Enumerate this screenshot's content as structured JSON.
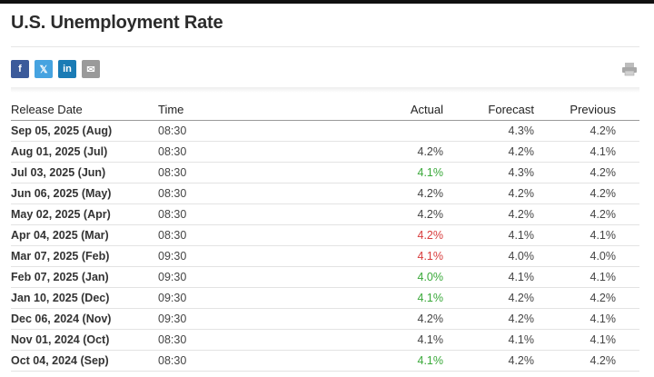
{
  "page": {
    "title": "U.S. Unemployment Rate"
  },
  "share": [
    {
      "id": "facebook",
      "glyph": "f",
      "color": "#3b5a9a"
    },
    {
      "id": "twitter",
      "glyph": "𝕏",
      "color": "#46a3e0"
    },
    {
      "id": "linkedin",
      "glyph": "in",
      "color": "#1a7bb5"
    },
    {
      "id": "email",
      "glyph": "✉",
      "color": "#9a9a9a"
    }
  ],
  "colors": {
    "better": "#3aa93a",
    "worse": "#d83c3c"
  },
  "table": {
    "headers": {
      "date": "Release Date",
      "time": "Time",
      "actual": "Actual",
      "forecast": "Forecast",
      "previous": "Previous"
    },
    "rows": [
      {
        "date": "Sep 05, 2025 (Aug)",
        "time": "08:30",
        "actual": "",
        "actual_status": "",
        "forecast": "4.3%",
        "previous": "4.2%"
      },
      {
        "date": "Aug 01, 2025 (Jul)",
        "time": "08:30",
        "actual": "4.2%",
        "actual_status": "",
        "forecast": "4.2%",
        "previous": "4.1%"
      },
      {
        "date": "Jul 03, 2025 (Jun)",
        "time": "08:30",
        "actual": "4.1%",
        "actual_status": "better",
        "forecast": "4.3%",
        "previous": "4.2%"
      },
      {
        "date": "Jun 06, 2025 (May)",
        "time": "08:30",
        "actual": "4.2%",
        "actual_status": "",
        "forecast": "4.2%",
        "previous": "4.2%"
      },
      {
        "date": "May 02, 2025 (Apr)",
        "time": "08:30",
        "actual": "4.2%",
        "actual_status": "",
        "forecast": "4.2%",
        "previous": "4.2%"
      },
      {
        "date": "Apr 04, 2025 (Mar)",
        "time": "08:30",
        "actual": "4.2%",
        "actual_status": "worse",
        "forecast": "4.1%",
        "previous": "4.1%"
      },
      {
        "date": "Mar 07, 2025 (Feb)",
        "time": "09:30",
        "actual": "4.1%",
        "actual_status": "worse",
        "forecast": "4.0%",
        "previous": "4.0%"
      },
      {
        "date": "Feb 07, 2025 (Jan)",
        "time": "09:30",
        "actual": "4.0%",
        "actual_status": "better",
        "forecast": "4.1%",
        "previous": "4.1%"
      },
      {
        "date": "Jan 10, 2025 (Dec)",
        "time": "09:30",
        "actual": "4.1%",
        "actual_status": "better",
        "forecast": "4.2%",
        "previous": "4.2%"
      },
      {
        "date": "Dec 06, 2024 (Nov)",
        "time": "09:30",
        "actual": "4.2%",
        "actual_status": "",
        "forecast": "4.2%",
        "previous": "4.1%"
      },
      {
        "date": "Nov 01, 2024 (Oct)",
        "time": "08:30",
        "actual": "4.1%",
        "actual_status": "",
        "forecast": "4.1%",
        "previous": "4.1%"
      },
      {
        "date": "Oct 04, 2024 (Sep)",
        "time": "08:30",
        "actual": "4.1%",
        "actual_status": "better",
        "forecast": "4.2%",
        "previous": "4.2%"
      }
    ]
  }
}
